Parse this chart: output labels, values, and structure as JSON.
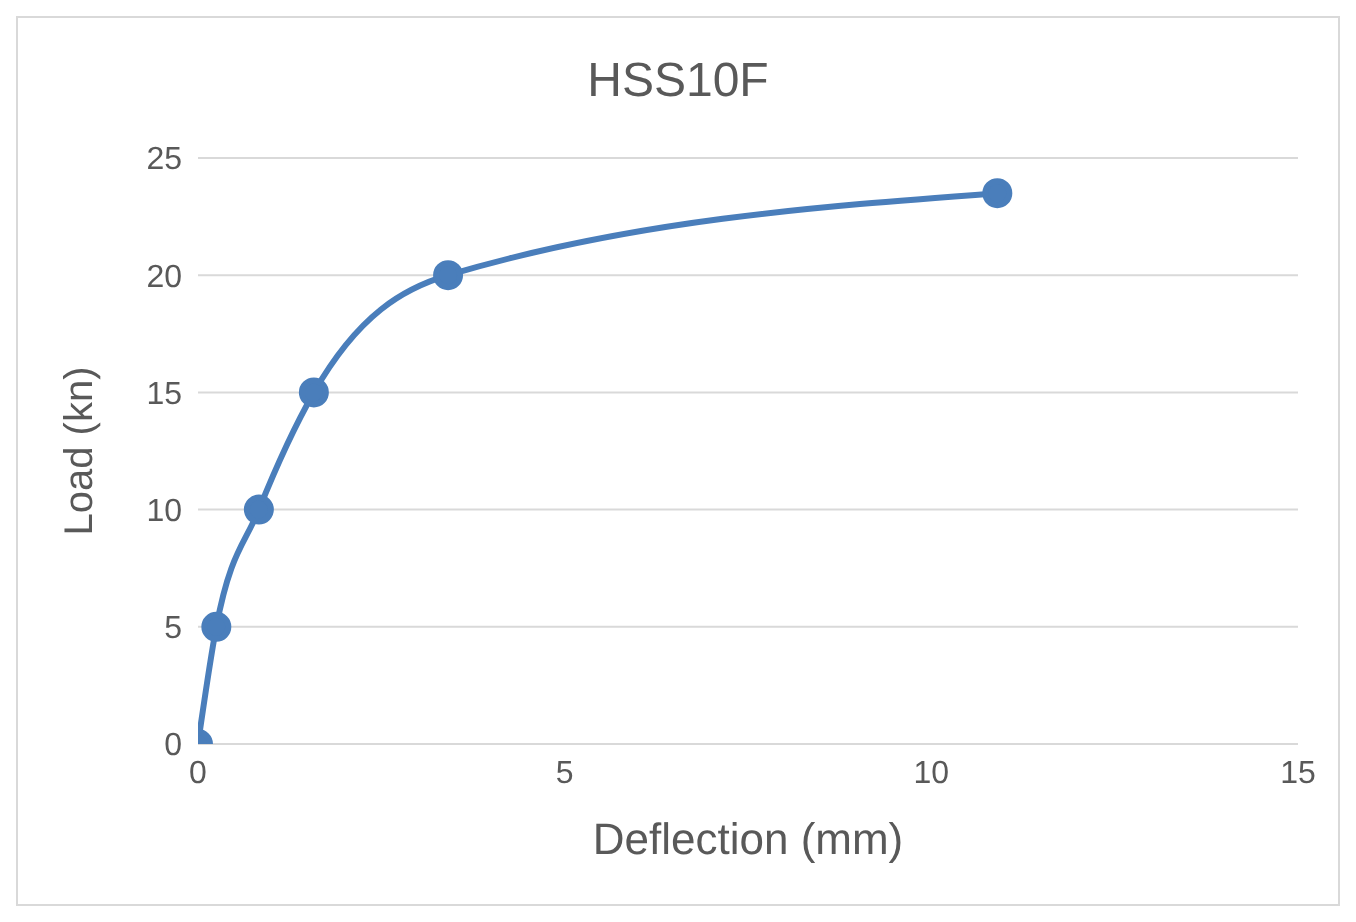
{
  "chart_data": {
    "type": "line",
    "title": "HSS10F",
    "xlabel": "Deflection (mm)",
    "ylabel": "Load (kn)",
    "x": [
      0,
      0.25,
      0.83,
      1.58,
      3.41,
      10.9
    ],
    "series": [
      {
        "color": "#4a7ebb",
        "values": [
          0,
          5,
          10,
          15,
          20,
          23.5
        ]
      }
    ],
    "xlim": [
      0,
      15
    ],
    "xticks": [
      0,
      5,
      10,
      15
    ],
    "ylim": [
      0,
      25
    ],
    "yticks": [
      0,
      5,
      10,
      15,
      20,
      25
    ],
    "grid": "y",
    "marker": "circle",
    "line_style": "solid"
  }
}
